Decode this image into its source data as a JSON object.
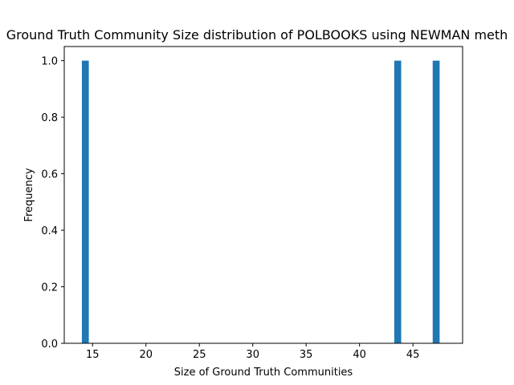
{
  "chart_data": {
    "type": "bar",
    "title": "Ground Truth Community Size distribution of POLBOOKS using NEWMAN meth",
    "xlabel": "Size of Ground Truth Communities",
    "ylabel": "Frequency",
    "xlim": [
      12.35,
      49.65
    ],
    "ylim": [
      0,
      1.05
    ],
    "bin_width": 0.65,
    "bars": [
      {
        "x_start": 14.0,
        "x_end": 14.65,
        "value": 1
      },
      {
        "x_start": 43.25,
        "x_end": 43.9,
        "value": 1
      },
      {
        "x_start": 46.85,
        "x_end": 47.5,
        "value": 1
      }
    ],
    "x_ticks": [
      15,
      20,
      25,
      30,
      35,
      40,
      45
    ],
    "x_tick_labels": [
      "15",
      "20",
      "25",
      "30",
      "35",
      "40",
      "45"
    ],
    "y_ticks": [
      0.0,
      0.2,
      0.4,
      0.6,
      0.8,
      1.0
    ],
    "y_tick_labels": [
      "0.0",
      "0.2",
      "0.4",
      "0.6",
      "0.8",
      "1.0"
    ],
    "bar_color": "#1f77b4",
    "grid": false,
    "legend": false
  }
}
